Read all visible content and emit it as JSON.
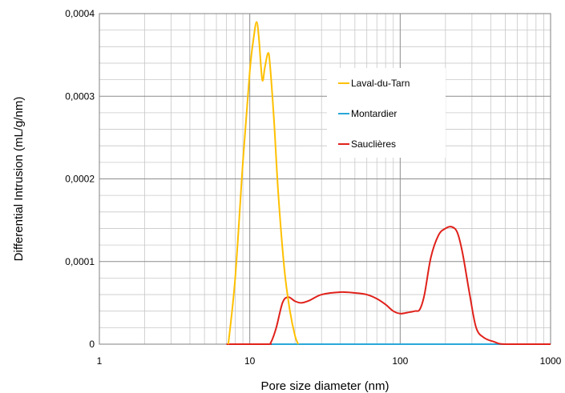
{
  "chart_data": {
    "type": "line",
    "xlabel": "Pore size diameter (nm)",
    "ylabel": "Differential Intrusion (mL/g/nm)",
    "xscale": "log",
    "xlim": [
      1,
      1000
    ],
    "ylim": [
      0,
      0.0004
    ],
    "grid": true,
    "legend_position": "top-right",
    "x_ticks": [
      {
        "value": 1,
        "label": "1"
      },
      {
        "value": 10,
        "label": "10"
      },
      {
        "value": 100,
        "label": "100"
      },
      {
        "value": 1000,
        "label": "1000"
      }
    ],
    "y_ticks": [
      {
        "value": 0,
        "label": "0"
      },
      {
        "value": 0.0001,
        "label": "0,0001"
      },
      {
        "value": 0.0002,
        "label": "0,0002"
      },
      {
        "value": 0.0003,
        "label": "0,0003"
      },
      {
        "value": 0.0004,
        "label": "0,0004"
      }
    ],
    "series": [
      {
        "name": "Laval-du-Tarn",
        "color": "#FFC000",
        "points": [
          [
            7.2,
            0
          ],
          [
            8,
            8e-05
          ],
          [
            9,
            0.00022
          ],
          [
            10,
            0.00033
          ],
          [
            10.6,
            0.00037
          ],
          [
            11.1,
            0.00039
          ],
          [
            11.5,
            0.00037
          ],
          [
            12.1,
            0.00032
          ],
          [
            12.6,
            0.000335
          ],
          [
            13.2,
            0.000352
          ],
          [
            13.6,
            0.00034
          ],
          [
            14.5,
            0.00027
          ],
          [
            15.5,
            0.00018
          ],
          [
            17,
            9e-05
          ],
          [
            18.5,
            4e-05
          ],
          [
            20,
            1e-05
          ],
          [
            21,
            0
          ]
        ]
      },
      {
        "name": "Montardier",
        "color": "#2AA7D8",
        "points": [
          [
            13,
            0
          ],
          [
            1000,
            0
          ]
        ]
      },
      {
        "name": "Sauclières",
        "color": "#E0211A",
        "points": [
          [
            7,
            0
          ],
          [
            13,
            0
          ],
          [
            13.8,
            2e-06
          ],
          [
            15,
            2e-05
          ],
          [
            16.5,
            5e-05
          ],
          [
            18,
            5.7e-05
          ],
          [
            20,
            5.2e-05
          ],
          [
            22,
            5e-05
          ],
          [
            25,
            5.3e-05
          ],
          [
            30,
            6e-05
          ],
          [
            40,
            6.3e-05
          ],
          [
            50,
            6.2e-05
          ],
          [
            60,
            6e-05
          ],
          [
            70,
            5.5e-05
          ],
          [
            80,
            4.8e-05
          ],
          [
            90,
            4e-05
          ],
          [
            100,
            3.7e-05
          ],
          [
            110,
            3.8e-05
          ],
          [
            125,
            4e-05
          ],
          [
            135,
            4.2e-05
          ],
          [
            145,
            6e-05
          ],
          [
            160,
            0.000105
          ],
          [
            180,
            0.000132
          ],
          [
            200,
            0.00014
          ],
          [
            220,
            0.000142
          ],
          [
            240,
            0.000135
          ],
          [
            260,
            0.00011
          ],
          [
            290,
            6e-05
          ],
          [
            320,
            2e-05
          ],
          [
            360,
            8e-06
          ],
          [
            420,
            3e-06
          ],
          [
            500,
            0
          ],
          [
            1000,
            0
          ]
        ]
      }
    ]
  }
}
